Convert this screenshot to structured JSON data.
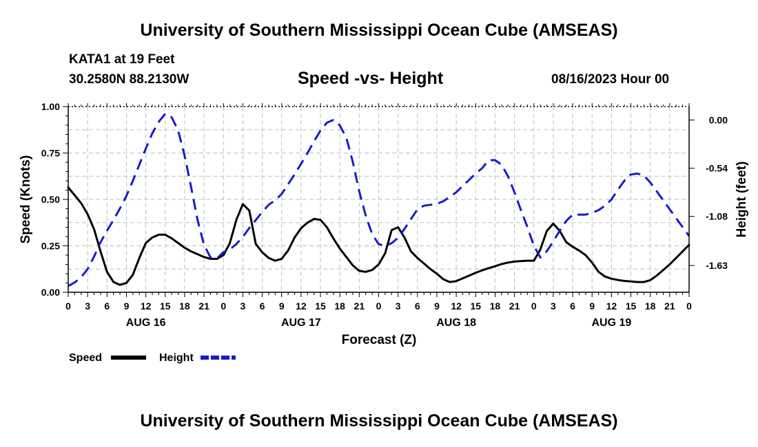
{
  "header": {
    "title": "University of Southern Mississippi Ocean Cube (AMSEAS)",
    "station": "KATA1 at 19 Feet",
    "coords": "30.2580N  88.2130W",
    "date": "08/16/2023 Hour 00"
  },
  "footer": {
    "title": "University of Southern Mississippi Ocean Cube (AMSEAS)"
  },
  "chart_data": {
    "type": "line",
    "title": "Speed -vs- Height",
    "xlabel": "Forecast (Z)",
    "ylabel": "Speed (Knots)",
    "y2label": "Height (feet)",
    "xlim": [
      0,
      96
    ],
    "ylim": [
      0,
      1
    ],
    "y2lim": [
      -1.93,
      0.15
    ],
    "grid": true,
    "x_tick_labels": [
      "0",
      "3",
      "6",
      "9",
      "12",
      "15",
      "18",
      "21",
      "0",
      "3",
      "6",
      "9",
      "12",
      "15",
      "18",
      "21",
      "0",
      "3",
      "6",
      "9",
      "12",
      "15",
      "18",
      "21",
      "0",
      "3",
      "6",
      "9",
      "12",
      "15",
      "18",
      "21",
      "0"
    ],
    "y_ticks": [
      0,
      0.25,
      0.5,
      0.75,
      1.0
    ],
    "y_tick_labels": [
      "0.00",
      "0.25",
      "0.50",
      "0.75",
      "1.00"
    ],
    "y2_ticks": [
      -1.63,
      -1.08,
      -0.54,
      0.0
    ],
    "y2_tick_labels": [
      "-1.63",
      "-1.08",
      "-0.54",
      "0.00"
    ],
    "day_labels": [
      {
        "label": "AUG 16",
        "hour": 12
      },
      {
        "label": "AUG 17",
        "hour": 36
      },
      {
        "label": "AUG 18",
        "hour": 60
      },
      {
        "label": "AUG 19",
        "hour": 84
      }
    ],
    "legend": {
      "position": "bottom-left",
      "speed_label": "Speed",
      "height_label": "Height"
    },
    "series": [
      {
        "name": "Speed",
        "axis": "left",
        "color": "#000000",
        "style": "solid",
        "points": [
          [
            0,
            0.565
          ],
          [
            2,
            0.48
          ],
          [
            3,
            0.42
          ],
          [
            4,
            0.34
          ],
          [
            5,
            0.22
          ],
          [
            6,
            0.11
          ],
          [
            7,
            0.055
          ],
          [
            8,
            0.04
          ],
          [
            9,
            0.05
          ],
          [
            10,
            0.095
          ],
          [
            11,
            0.185
          ],
          [
            12,
            0.265
          ],
          [
            13,
            0.295
          ],
          [
            14,
            0.31
          ],
          [
            15,
            0.31
          ],
          [
            16,
            0.29
          ],
          [
            17,
            0.265
          ],
          [
            18,
            0.24
          ],
          [
            19,
            0.22
          ],
          [
            20,
            0.205
          ],
          [
            21,
            0.19
          ],
          [
            22,
            0.18
          ],
          [
            23,
            0.18
          ],
          [
            24,
            0.2
          ],
          [
            25,
            0.265
          ],
          [
            26,
            0.39
          ],
          [
            27,
            0.475
          ],
          [
            28,
            0.44
          ],
          [
            29,
            0.26
          ],
          [
            30,
            0.215
          ],
          [
            31,
            0.185
          ],
          [
            32,
            0.17
          ],
          [
            33,
            0.18
          ],
          [
            34,
            0.225
          ],
          [
            35,
            0.295
          ],
          [
            36,
            0.345
          ],
          [
            37,
            0.375
          ],
          [
            38,
            0.395
          ],
          [
            39,
            0.39
          ],
          [
            40,
            0.35
          ],
          [
            41,
            0.29
          ],
          [
            42,
            0.235
          ],
          [
            43,
            0.19
          ],
          [
            44,
            0.145
          ],
          [
            45,
            0.115
          ],
          [
            46,
            0.11
          ],
          [
            47,
            0.12
          ],
          [
            48,
            0.15
          ],
          [
            49,
            0.21
          ],
          [
            50,
            0.335
          ],
          [
            51,
            0.35
          ],
          [
            52,
            0.295
          ],
          [
            53,
            0.22
          ],
          [
            54,
            0.185
          ],
          [
            55,
            0.155
          ],
          [
            56,
            0.125
          ],
          [
            57,
            0.1
          ],
          [
            58,
            0.07
          ],
          [
            59,
            0.055
          ],
          [
            60,
            0.06
          ],
          [
            61,
            0.075
          ],
          [
            62,
            0.09
          ],
          [
            63,
            0.105
          ],
          [
            64,
            0.118
          ],
          [
            65,
            0.13
          ],
          [
            66,
            0.14
          ],
          [
            67,
            0.152
          ],
          [
            68,
            0.16
          ],
          [
            69,
            0.165
          ],
          [
            70,
            0.168
          ],
          [
            71,
            0.17
          ],
          [
            72,
            0.17
          ],
          [
            73,
            0.23
          ],
          [
            74,
            0.33
          ],
          [
            75,
            0.37
          ],
          [
            76,
            0.33
          ],
          [
            77,
            0.27
          ],
          [
            78,
            0.245
          ],
          [
            79,
            0.225
          ],
          [
            80,
            0.2
          ],
          [
            81,
            0.16
          ],
          [
            82,
            0.11
          ],
          [
            83,
            0.085
          ],
          [
            84,
            0.073
          ],
          [
            85,
            0.066
          ],
          [
            86,
            0.061
          ],
          [
            87,
            0.058
          ],
          [
            88,
            0.055
          ],
          [
            89,
            0.055
          ],
          [
            90,
            0.065
          ],
          [
            91,
            0.09
          ],
          [
            92,
            0.12
          ],
          [
            93,
            0.15
          ],
          [
            94,
            0.185
          ],
          [
            95,
            0.22
          ],
          [
            96,
            0.255
          ]
        ]
      },
      {
        "name": "Height",
        "axis": "right",
        "color": "#1a1acc",
        "style": "dashed",
        "points": [
          [
            0,
            -1.86
          ],
          [
            1,
            -1.82
          ],
          [
            2,
            -1.76
          ],
          [
            3,
            -1.67
          ],
          [
            4,
            -1.53
          ],
          [
            5,
            -1.37
          ],
          [
            6,
            -1.24
          ],
          [
            7,
            -1.12
          ],
          [
            8,
            -0.99
          ],
          [
            9,
            -0.85
          ],
          [
            10,
            -0.68
          ],
          [
            11,
            -0.5
          ],
          [
            12,
            -0.32
          ],
          [
            13,
            -0.15
          ],
          [
            14,
            -0.02
          ],
          [
            15,
            0.07
          ],
          [
            16,
            0.03
          ],
          [
            17,
            -0.12
          ],
          [
            18,
            -0.4
          ],
          [
            19,
            -0.75
          ],
          [
            20,
            -1.12
          ],
          [
            21,
            -1.4
          ],
          [
            22,
            -1.54
          ],
          [
            23,
            -1.55
          ],
          [
            24,
            -1.48
          ],
          [
            25,
            -1.45
          ],
          [
            26,
            -1.39
          ],
          [
            27,
            -1.31
          ],
          [
            28,
            -1.21
          ],
          [
            29,
            -1.12
          ],
          [
            30,
            -1.03
          ],
          [
            31,
            -0.95
          ],
          [
            32,
            -0.9
          ],
          [
            33,
            -0.83
          ],
          [
            34,
            -0.72
          ],
          [
            35,
            -0.61
          ],
          [
            36,
            -0.49
          ],
          [
            37,
            -0.37
          ],
          [
            38,
            -0.24
          ],
          [
            39,
            -0.12
          ],
          [
            40,
            -0.03
          ],
          [
            41,
            0.0
          ],
          [
            42,
            -0.06
          ],
          [
            43,
            -0.2
          ],
          [
            44,
            -0.47
          ],
          [
            45,
            -0.8
          ],
          [
            46,
            -1.07
          ],
          [
            47,
            -1.28
          ],
          [
            48,
            -1.39
          ],
          [
            49,
            -1.41
          ],
          [
            50,
            -1.38
          ],
          [
            51,
            -1.32
          ],
          [
            52,
            -1.22
          ],
          [
            53,
            -1.11
          ],
          [
            54,
            -1.0
          ],
          [
            55,
            -0.96
          ],
          [
            56,
            -0.95
          ],
          [
            57,
            -0.94
          ],
          [
            58,
            -0.91
          ],
          [
            59,
            -0.86
          ],
          [
            60,
            -0.81
          ],
          [
            61,
            -0.74
          ],
          [
            62,
            -0.67
          ],
          [
            63,
            -0.6
          ],
          [
            64,
            -0.54
          ],
          [
            65,
            -0.45
          ],
          [
            66,
            -0.45
          ],
          [
            67,
            -0.5
          ],
          [
            68,
            -0.63
          ],
          [
            69,
            -0.81
          ],
          [
            70,
            -1.01
          ],
          [
            71,
            -1.2
          ],
          [
            72,
            -1.41
          ],
          [
            73,
            -1.54
          ],
          [
            74,
            -1.47
          ],
          [
            75,
            -1.36
          ],
          [
            76,
            -1.24
          ],
          [
            77,
            -1.13
          ],
          [
            78,
            -1.06
          ],
          [
            79,
            -1.06
          ],
          [
            80,
            -1.06
          ],
          [
            81,
            -1.04
          ],
          [
            82,
            -1.01
          ],
          [
            83,
            -0.96
          ],
          [
            84,
            -0.89
          ],
          [
            85,
            -0.78
          ],
          [
            86,
            -0.68
          ],
          [
            87,
            -0.61
          ],
          [
            88,
            -0.6
          ],
          [
            89,
            -0.62
          ],
          [
            90,
            -0.7
          ],
          [
            91,
            -0.8
          ],
          [
            92,
            -0.9
          ],
          [
            93,
            -1.0
          ],
          [
            94,
            -1.1
          ],
          [
            95,
            -1.2
          ],
          [
            96,
            -1.3
          ]
        ]
      }
    ]
  }
}
